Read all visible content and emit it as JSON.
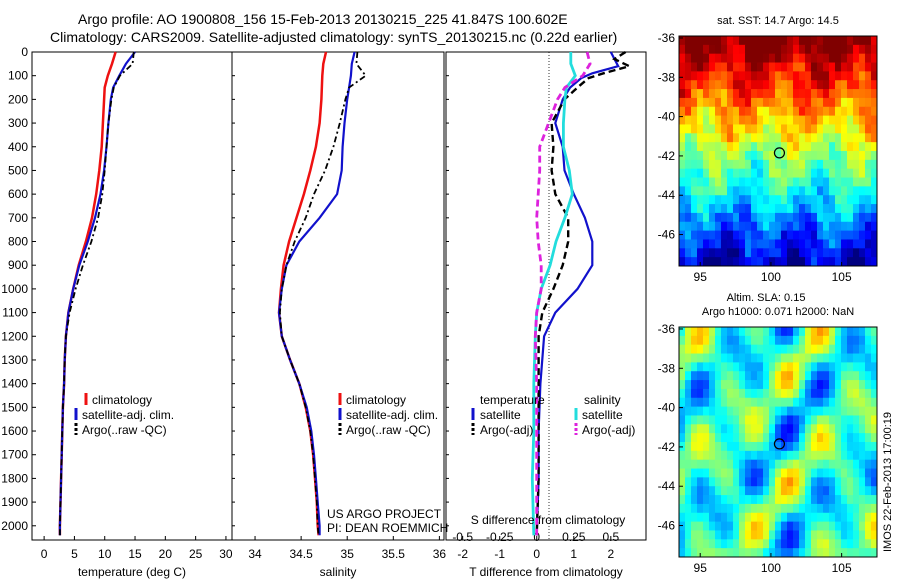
{
  "header": {
    "line1": "Argo profile: AO 1900808_156 15-Feb-2013 20130215_225 41.847S 100.602E",
    "line2": "Climatology: CARS2009. Satellite-adjusted climatology: synTS_20130215.nc (0.22d earlier)"
  },
  "colors": {
    "climatology": "#ee1111",
    "satellite": "#1111cc",
    "argo": "#000000",
    "sal_satellite": "#22dddd",
    "sal_argo": "#dd22dd"
  },
  "credits": {
    "line1": "US ARGO PROJECT",
    "line2": "PI: DEAN ROEMMICH",
    "stamp": "IMOS 22-Feb-2013 17:00:19"
  },
  "chart_data": [
    {
      "type": "line",
      "name": "temperature",
      "xlabel": "temperature (deg C)",
      "xlim": [
        -2,
        31
      ],
      "ylim": [
        2060,
        0
      ],
      "xticks": [
        0,
        5,
        10,
        15,
        20,
        25,
        30
      ],
      "yticks": [
        0,
        100,
        200,
        300,
        400,
        500,
        600,
        700,
        800,
        900,
        1000,
        1100,
        1200,
        1300,
        1400,
        1500,
        1600,
        1700,
        1800,
        1900,
        2000
      ],
      "legend": [
        "climatology",
        "satellite-adj. clim.",
        "Argo(..raw -QC)"
      ],
      "series": [
        {
          "name": "climatology",
          "depth": [
            0,
            50,
            100,
            150,
            200,
            300,
            400,
            500,
            600,
            700,
            800,
            900,
            1000,
            1100,
            1200,
            1300,
            1400,
            1500,
            1600,
            1700,
            1800,
            1900,
            2000,
            2040
          ],
          "values": [
            11.8,
            11.2,
            10.5,
            10.0,
            9.9,
            9.7,
            9.5,
            9.1,
            8.6,
            7.9,
            6.9,
            5.7,
            4.8,
            4.0,
            3.6,
            3.4,
            3.3,
            3.1,
            3.0,
            2.9,
            2.8,
            2.7,
            2.6,
            2.6
          ]
        },
        {
          "name": "satellite-adj. clim.",
          "depth": [
            0,
            50,
            100,
            150,
            200,
            300,
            400,
            500,
            600,
            700,
            800,
            900,
            1000,
            1100,
            1200,
            1300,
            1400,
            1500,
            1600,
            1700,
            1800,
            1900,
            2000,
            2040
          ],
          "values": [
            15.0,
            13.5,
            12.4,
            11.4,
            11.0,
            10.6,
            10.3,
            9.9,
            9.3,
            8.4,
            7.2,
            5.8,
            4.8,
            4.0,
            3.6,
            3.4,
            3.3,
            3.1,
            3.0,
            2.9,
            2.8,
            2.7,
            2.6,
            2.6
          ]
        },
        {
          "name": "Argo(..raw -QC)",
          "depth": [
            0,
            50,
            100,
            150,
            200,
            300,
            400,
            500,
            600,
            700,
            800,
            900,
            1000,
            1100,
            1200,
            1300,
            1400,
            1500,
            1600,
            1700,
            1800,
            1900,
            2000,
            2040
          ],
          "values": [
            14.8,
            14.6,
            12.5,
            11.5,
            11.1,
            10.6,
            10.3,
            10.0,
            9.6,
            8.9,
            7.8,
            6.4,
            5.2,
            4.2,
            3.6,
            3.4,
            3.3,
            3.1,
            3.0,
            2.9,
            2.8,
            2.7,
            2.6,
            2.6
          ]
        }
      ]
    },
    {
      "type": "line",
      "name": "salinity",
      "xlabel": "salinity",
      "xlim": [
        33.75,
        36.05
      ],
      "ylim": [
        2060,
        0
      ],
      "xticks": [
        34,
        34.5,
        35,
        35.5,
        36
      ],
      "legend": [
        "climatology",
        "satellite-adj. clim.",
        "Argo(..raw -QC)"
      ],
      "series": [
        {
          "name": "climatology",
          "depth": [
            0,
            50,
            100,
            200,
            300,
            400,
            500,
            600,
            700,
            800,
            900,
            1000,
            1100,
            1200,
            1300,
            1400,
            1500,
            1600,
            1700,
            1800,
            1900,
            2000,
            2040
          ],
          "values": [
            34.77,
            34.74,
            34.73,
            34.72,
            34.7,
            34.66,
            34.6,
            34.53,
            34.45,
            34.37,
            34.31,
            34.28,
            34.26,
            34.29,
            34.38,
            34.48,
            34.55,
            34.6,
            34.63,
            34.65,
            34.67,
            34.68,
            34.69
          ]
        },
        {
          "name": "satellite-adj. clim.",
          "depth": [
            0,
            50,
            100,
            150,
            200,
            300,
            400,
            500,
            600,
            700,
            800,
            900,
            1000,
            1100,
            1200,
            1300,
            1400,
            1500,
            1600,
            1700,
            1800,
            1900,
            2000,
            2040
          ],
          "values": [
            35.08,
            35.05,
            35.04,
            35.02,
            35.0,
            34.97,
            34.95,
            34.94,
            34.89,
            34.7,
            34.48,
            34.34,
            34.29,
            34.26,
            34.29,
            34.38,
            34.48,
            34.56,
            34.61,
            34.64,
            34.66,
            34.68,
            34.7,
            34.7
          ]
        },
        {
          "name": "Argo(..raw -QC)",
          "depth": [
            0,
            50,
            100,
            150,
            200,
            300,
            400,
            500,
            600,
            700,
            800,
            900,
            1000,
            1100,
            1200,
            1300,
            1400,
            1500,
            1600,
            1700,
            1800,
            1900,
            2000,
            2040
          ],
          "values": [
            35.11,
            35.1,
            35.2,
            35.02,
            34.98,
            34.92,
            34.85,
            34.76,
            34.64,
            34.55,
            34.43,
            34.34,
            34.29,
            34.27,
            34.29,
            34.38,
            34.48,
            34.55,
            34.6,
            34.63,
            34.65,
            34.67,
            34.68,
            34.69
          ]
        }
      ]
    },
    {
      "type": "line",
      "name": "difference",
      "xlabel": "T difference from climatology",
      "x2label": "S difference from climatology",
      "xlim": [
        -2.45,
        2.95
      ],
      "ylim": [
        2060,
        0
      ],
      "xticks": [
        -2,
        -1,
        0,
        1,
        2
      ],
      "x2ticks": [
        -0.5,
        -0.25,
        0,
        0.25,
        0.5
      ],
      "legend_headers": [
        "temperature",
        "salinity"
      ],
      "legend": [
        "satellite",
        "Argo(-adj)",
        "satellite",
        "Argo(-adj)"
      ],
      "series": [
        {
          "name": "satellite",
          "depth": [
            0,
            30,
            60,
            90,
            110,
            150,
            200,
            300,
            400,
            500,
            600,
            700,
            800,
            900,
            1000,
            1100,
            1200,
            1400,
            1600,
            1800,
            2040
          ],
          "values": [
            2.0,
            2.1,
            2.2,
            1.5,
            1.2,
            0.9,
            0.7,
            0.5,
            0.7,
            0.75,
            1.0,
            1.3,
            1.5,
            1.5,
            1.1,
            0.5,
            0.2,
            0.1,
            0.05,
            0.05,
            0.0
          ]
        },
        {
          "name": "Argo(-adj)",
          "depth": [
            0,
            30,
            60,
            90,
            110,
            150,
            200,
            300,
            400,
            500,
            600,
            700,
            800,
            900,
            1000,
            1100,
            1200,
            1400,
            1600,
            1800,
            2040
          ],
          "values": [
            2.4,
            2.1,
            2.5,
            1.8,
            1.4,
            1.1,
            0.75,
            0.4,
            0.45,
            0.4,
            0.5,
            0.85,
            0.85,
            0.7,
            0.45,
            0.15,
            0.05,
            0.05,
            0.05,
            0.05,
            0.0
          ]
        },
        {
          "name": "satellite",
          "depth": [
            0,
            50,
            100,
            150,
            200,
            300,
            400,
            500,
            600,
            700,
            800,
            900,
            1000,
            1100,
            1200,
            1400,
            1600,
            1800,
            2040
          ],
          "values": [
            0.23,
            0.23,
            0.26,
            0.2,
            0.19,
            0.18,
            0.18,
            0.22,
            0.24,
            0.19,
            0.13,
            0.09,
            0.03,
            0.0,
            -0.01,
            -0.02,
            -0.02,
            -0.03,
            -0.02
          ]
        },
        {
          "name": "Argo(-adj)",
          "depth": [
            0,
            50,
            100,
            150,
            200,
            300,
            400,
            500,
            600,
            700,
            800,
            900,
            1000,
            1100,
            1200,
            1400,
            1600,
            1800,
            2040
          ],
          "values": [
            0.34,
            0.36,
            0.31,
            0.19,
            0.14,
            0.08,
            0.02,
            0.02,
            0.01,
            0.0,
            0.01,
            0.03,
            0.03,
            0.0,
            -0.01,
            0.0,
            0.0,
            0.0,
            0.0
          ]
        }
      ]
    },
    {
      "type": "heatmap",
      "name": "sst-map",
      "title": "sat. SST: 14.7 Argo: 14.5",
      "xticks": [
        95,
        100,
        105
      ],
      "yticks": [
        -36,
        -38,
        -40,
        -42,
        -44,
        -46
      ],
      "xlim": [
        93.5,
        107.5
      ],
      "ylim": [
        -47.6,
        -35.9
      ],
      "marker": {
        "lon": 100.602,
        "lat": -41.847
      }
    },
    {
      "type": "heatmap",
      "name": "sla-map",
      "title": "Altim. SLA: 0.15",
      "subtitle": "Argo h1000: 0.071 h2000: NaN",
      "xticks": [
        95,
        100,
        105
      ],
      "yticks": [
        -36,
        -38,
        -40,
        -42,
        -44,
        -46
      ],
      "xlim": [
        93.5,
        107.5
      ],
      "ylim": [
        -47.6,
        -35.9
      ],
      "marker": {
        "lon": 100.602,
        "lat": -41.847
      }
    }
  ]
}
